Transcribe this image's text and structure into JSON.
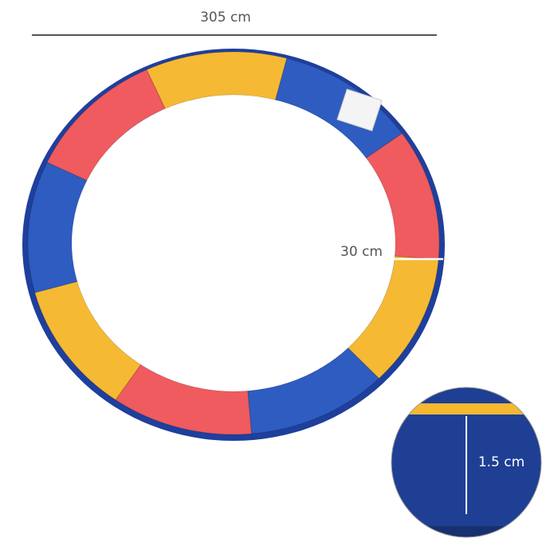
{
  "dimensions": {
    "diameter": "305 cm",
    "width": "30 cm",
    "thickness": "1.5 cm"
  }
}
